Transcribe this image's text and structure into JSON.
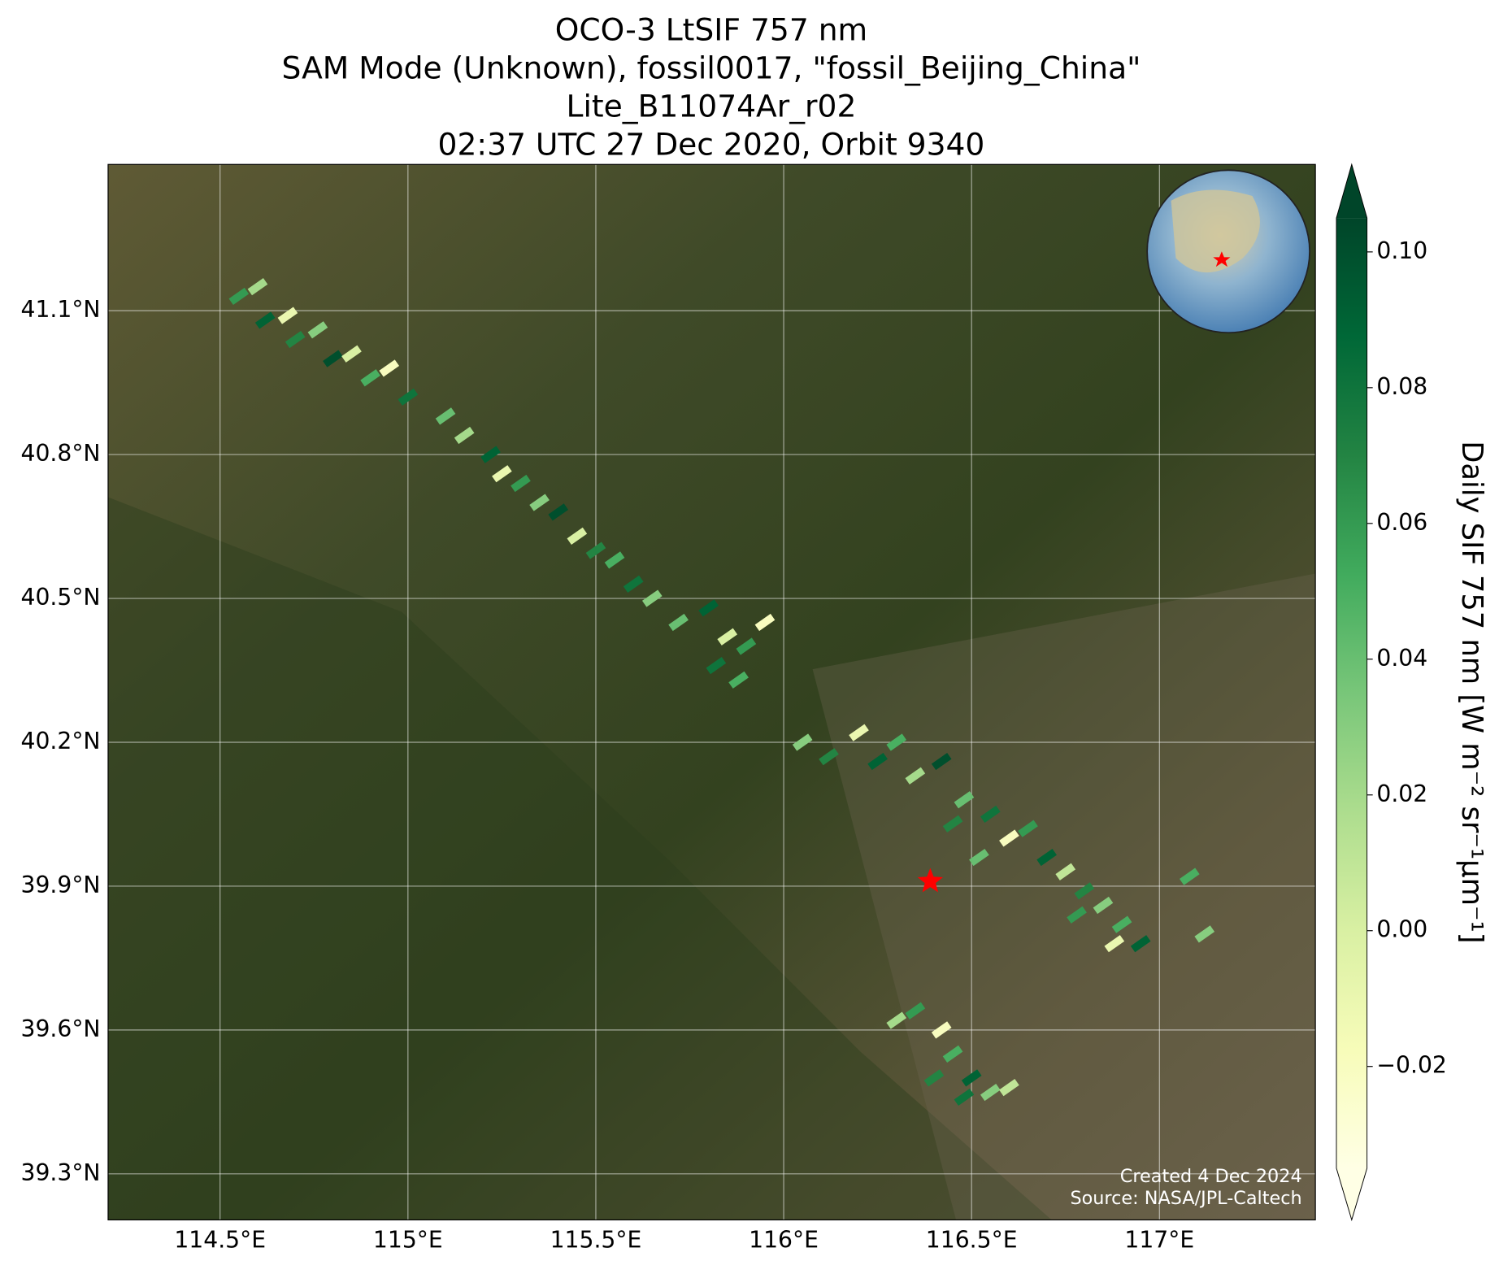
{
  "chart_data": {
    "type": "map",
    "title": [
      "OCO-3 LtSIF 757 nm",
      "SAM Mode (Unknown), fossil0017, \"fossil_Beijing_China\"",
      "Lite_B11074Ar_r02",
      "02:37 UTC 27 Dec 2020, Orbit 9340"
    ],
    "xlim": [
      114.202,
      117.415
    ],
    "ylim": [
      39.204,
      41.405
    ],
    "xticks": [
      {
        "value": 114.5,
        "label": "114.5°E"
      },
      {
        "value": 115,
        "label": "115°E"
      },
      {
        "value": 115.5,
        "label": "115.5°E"
      },
      {
        "value": 116,
        "label": "116°E"
      },
      {
        "value": 116.5,
        "label": "116.5°E"
      },
      {
        "value": 117,
        "label": "117°E"
      }
    ],
    "yticks": [
      {
        "value": 39.3,
        "label": "39.3°N"
      },
      {
        "value": 39.6,
        "label": "39.6°N"
      },
      {
        "value": 39.9,
        "label": "39.9°N"
      },
      {
        "value": 40.2,
        "label": "40.2°N"
      },
      {
        "value": 40.5,
        "label": "40.5°N"
      },
      {
        "value": 40.8,
        "label": "40.8°N"
      },
      {
        "value": 41.1,
        "label": "41.1°N"
      }
    ],
    "grid": true,
    "cmap": "YlGn",
    "clim": [
      -0.035,
      0.105
    ],
    "cticks": [
      {
        "value": 0.1,
        "label": "0.10"
      },
      {
        "value": 0.08,
        "label": "0.08"
      },
      {
        "value": 0.06,
        "label": "0.06"
      },
      {
        "value": 0.04,
        "label": "0.04"
      },
      {
        "value": 0.02,
        "label": "0.02"
      },
      {
        "value": 0,
        "label": "0.00"
      },
      {
        "value": -0.02,
        "label": "−0.02"
      }
    ],
    "colorbar_label": "Daily SIF 757 nm [W m⁻² sr⁻¹µm⁻¹]",
    "site": {
      "lon": 116.39,
      "lat": 39.91,
      "color": "#ff0000"
    },
    "credits": [
      "Created 4 Dec 2024",
      "Source: NASA/JPL-Caltech"
    ],
    "lon": [
      114.55,
      114.6,
      114.62,
      114.68,
      114.7,
      114.76,
      114.8,
      114.85,
      114.9,
      114.95,
      115.0,
      115.1,
      115.15,
      115.22,
      115.25,
      115.3,
      115.35,
      115.4,
      115.45,
      115.5,
      115.55,
      115.6,
      115.65,
      115.72,
      115.8,
      115.85,
      115.9,
      115.82,
      115.95,
      115.88,
      116.05,
      116.12,
      116.2,
      116.25,
      116.3,
      116.35,
      116.42,
      116.48,
      116.55,
      116.6,
      116.65,
      116.7,
      116.75,
      116.8,
      116.85,
      116.9,
      116.95,
      116.88,
      116.78,
      116.52,
      116.45,
      116.3,
      116.35,
      116.42,
      116.45,
      116.5,
      116.55,
      116.4,
      116.6,
      116.48,
      117.08,
      117.12
    ],
    "lat": [
      41.13,
      41.15,
      41.08,
      41.09,
      41.04,
      41.06,
      41.0,
      41.01,
      40.96,
      40.98,
      40.92,
      40.88,
      40.84,
      40.8,
      40.76,
      40.74,
      40.7,
      40.68,
      40.63,
      40.6,
      40.58,
      40.53,
      40.5,
      40.45,
      40.48,
      40.42,
      40.4,
      40.36,
      40.45,
      40.33,
      40.2,
      40.17,
      40.22,
      40.16,
      40.2,
      40.13,
      40.16,
      40.08,
      40.05,
      40.0,
      40.02,
      39.96,
      39.93,
      39.89,
      39.86,
      39.82,
      39.78,
      39.78,
      39.84,
      39.96,
      40.03,
      39.62,
      39.64,
      39.6,
      39.55,
      39.5,
      39.47,
      39.5,
      39.48,
      39.46,
      39.92,
      39.8
    ],
    "values": [
      0.06,
      0.02,
      0.09,
      -0.01,
      0.07,
      0.03,
      0.1,
      0.0,
      0.05,
      -0.02,
      0.08,
      0.04,
      0.02,
      0.09,
      -0.01,
      0.06,
      0.03,
      0.1,
      0.0,
      0.07,
      0.05,
      0.08,
      0.03,
      0.04,
      0.09,
      0.0,
      0.06,
      0.08,
      -0.02,
      0.05,
      0.03,
      0.07,
      -0.01,
      0.09,
      0.05,
      0.02,
      0.1,
      0.04,
      0.08,
      -0.02,
      0.06,
      0.09,
      0.01,
      0.07,
      0.03,
      0.05,
      0.09,
      -0.01,
      0.06,
      0.04,
      0.07,
      0.02,
      0.06,
      -0.02,
      0.05,
      0.09,
      0.03,
      0.07,
      0.01,
      0.08,
      0.05,
      0.03
    ]
  }
}
